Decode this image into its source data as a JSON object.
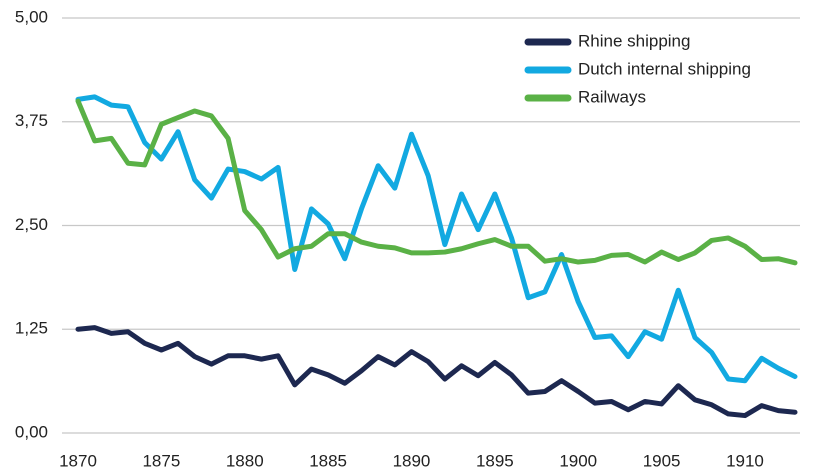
{
  "chart_data": {
    "type": "line",
    "x": [
      1870,
      1871,
      1872,
      1873,
      1874,
      1875,
      1876,
      1877,
      1878,
      1879,
      1880,
      1881,
      1882,
      1883,
      1884,
      1885,
      1886,
      1887,
      1888,
      1889,
      1890,
      1891,
      1892,
      1893,
      1894,
      1895,
      1896,
      1897,
      1898,
      1899,
      1900,
      1901,
      1902,
      1903,
      1904,
      1905,
      1906,
      1907,
      1908,
      1909,
      1910,
      1911,
      1912,
      1913
    ],
    "series": [
      {
        "name": "Rhine shipping",
        "color": "#1d2850",
        "values": [
          1.25,
          1.27,
          1.2,
          1.22,
          1.08,
          1.0,
          1.08,
          0.92,
          0.83,
          0.93,
          0.93,
          0.89,
          0.93,
          0.58,
          0.77,
          0.7,
          0.6,
          0.75,
          0.92,
          0.82,
          0.98,
          0.86,
          0.65,
          0.81,
          0.69,
          0.85,
          0.7,
          0.48,
          0.5,
          0.63,
          0.5,
          0.36,
          0.38,
          0.28,
          0.38,
          0.35,
          0.57,
          0.4,
          0.34,
          0.23,
          0.21,
          0.33,
          0.27,
          0.25
        ]
      },
      {
        "name": "Dutch internal shipping",
        "color": "#12a9e1",
        "values": [
          4.02,
          4.05,
          3.95,
          3.93,
          3.5,
          3.3,
          3.63,
          3.05,
          2.83,
          3.18,
          3.15,
          3.06,
          3.2,
          1.97,
          2.7,
          2.52,
          2.1,
          2.7,
          3.22,
          2.95,
          3.6,
          3.1,
          2.27,
          2.88,
          2.45,
          2.88,
          2.35,
          1.63,
          1.7,
          2.15,
          1.58,
          1.15,
          1.17,
          0.92,
          1.22,
          1.13,
          1.72,
          1.15,
          0.97,
          0.65,
          0.63,
          0.9,
          0.78,
          0.68
        ]
      },
      {
        "name": "Railways",
        "color": "#5ab146",
        "values": [
          4.0,
          3.52,
          3.55,
          3.25,
          3.23,
          3.72,
          3.8,
          3.88,
          3.82,
          3.55,
          2.68,
          2.45,
          2.12,
          2.22,
          2.25,
          2.4,
          2.4,
          2.3,
          2.25,
          2.23,
          2.17,
          2.17,
          2.18,
          2.22,
          2.28,
          2.33,
          2.25,
          2.25,
          2.07,
          2.1,
          2.06,
          2.08,
          2.14,
          2.15,
          2.06,
          2.18,
          2.09,
          2.17,
          2.32,
          2.35,
          2.25,
          2.09,
          2.1,
          2.05
        ]
      }
    ],
    "xlim": [
      1870,
      1913
    ],
    "xticks": [
      1870,
      1875,
      1880,
      1885,
      1890,
      1895,
      1900,
      1905,
      1910
    ],
    "ylim": [
      0,
      5
    ],
    "yticks": [
      {
        "value": 0,
        "label": "0,00"
      },
      {
        "value": 1.25,
        "label": "1,25"
      },
      {
        "value": 2.5,
        "label": "2,50"
      },
      {
        "value": 3.75,
        "label": "3,75"
      },
      {
        "value": 5,
        "label": "5,00"
      }
    ],
    "grid": true,
    "legend": "top-right"
  }
}
